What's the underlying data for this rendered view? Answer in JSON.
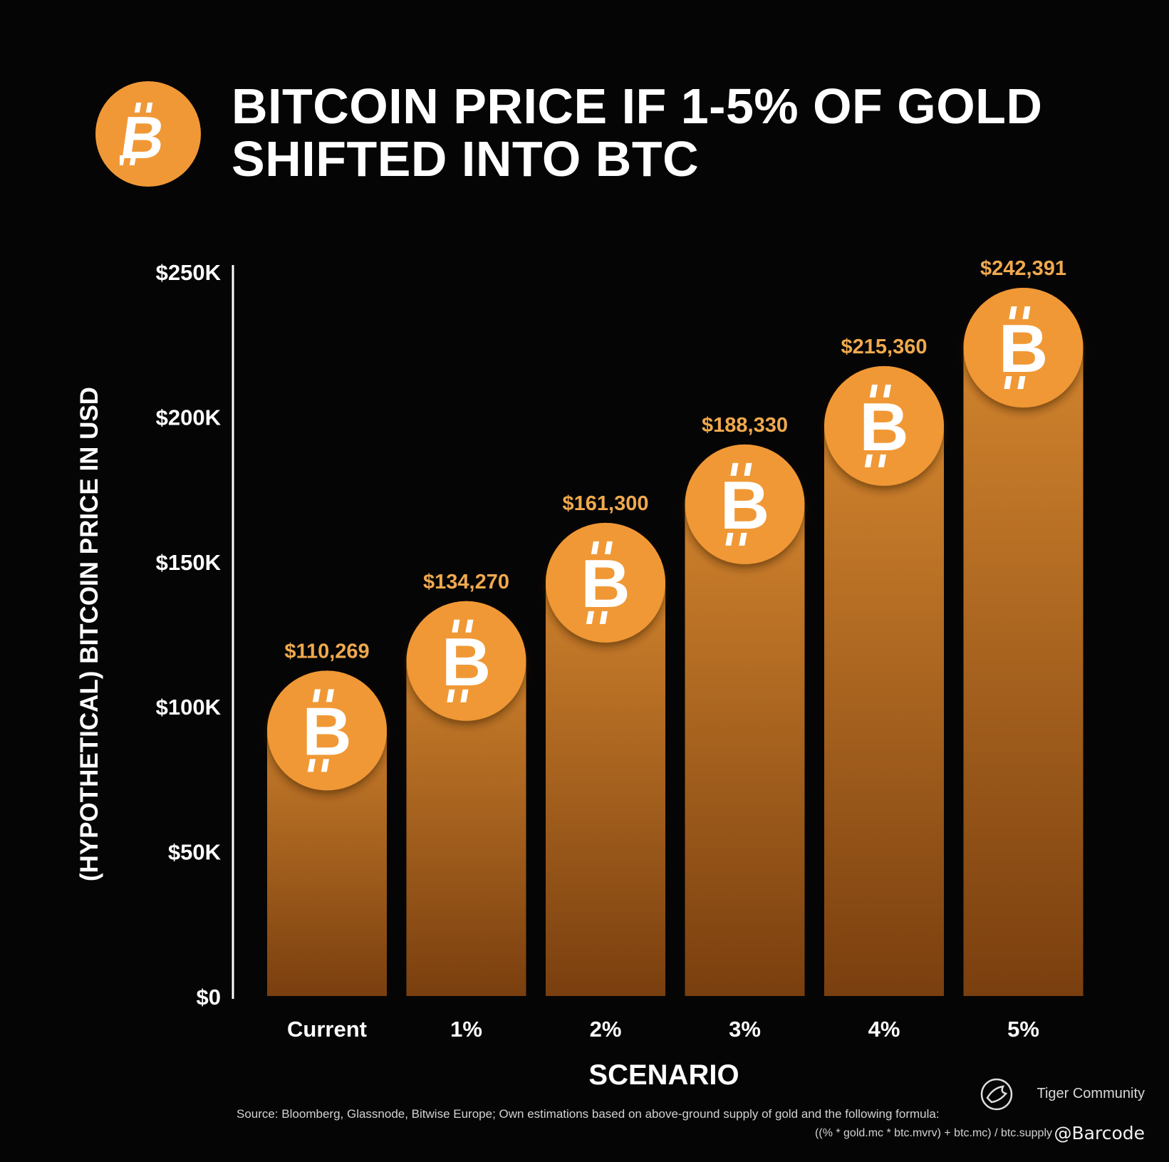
{
  "title": "BITCOIN PRICE IF 1-5% OF GOLD\nSHIFTED INTO BTC",
  "colors": {
    "background": "#050505",
    "accent": "#f09836",
    "bar_top": "#d98a30",
    "bar_bottom": "#7a3f0f",
    "value_label": "#f0a94e",
    "text": "#ffffff"
  },
  "icons": {
    "header": "bitcoin-coin-icon",
    "bar": "bitcoin-coin-icon",
    "watermark": "tiger-logo-icon"
  },
  "chart_data": {
    "type": "bar",
    "xlabel": "SCENARIO",
    "ylabel": "(HYPOTHETICAL) BITCOIN PRICE IN USD",
    "categories": [
      "Current",
      "1%",
      "2%",
      "3%",
      "4%",
      "5%"
    ],
    "values": [
      110269,
      134270,
      161300,
      188330,
      215360,
      242391
    ],
    "value_labels": [
      "$110,269",
      "$134,270",
      "$161,300",
      "$188,330",
      "$215,360",
      "$242,391"
    ],
    "ylim": [
      0,
      250000
    ],
    "yticks": [
      0,
      50000,
      100000,
      150000,
      200000,
      250000
    ],
    "ytick_labels": [
      "$0",
      "$50K",
      "$100K",
      "$150K",
      "$200K",
      "$250K"
    ],
    "grid": false,
    "legend": "none"
  },
  "source": {
    "line1": "Source: Bloomberg, Glassnode, Bitwise Europe; Own estimations based on above-ground supply of gold and the following formula:",
    "line2": "((% * gold.mc * btc.mvrv) + btc.mc) / btc.supply"
  },
  "watermark": {
    "community": "Tiger Community",
    "handle": "@Barcode"
  }
}
